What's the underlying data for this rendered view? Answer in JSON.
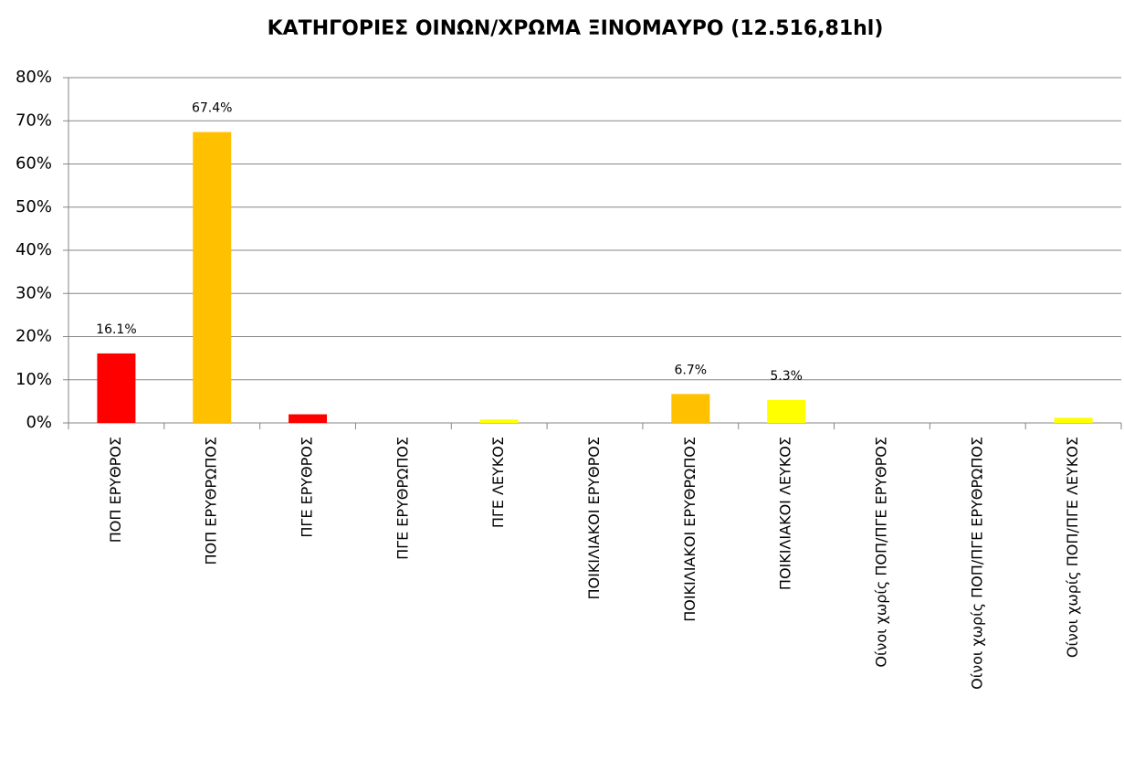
{
  "chart_data": {
    "type": "bar",
    "title": "ΚΑΤΗΓΟΡΙΕΣ ΟΙΝΩΝ/ΧΡΩΜΑ ΞΙΝΟΜΑΥΡΟ (12.516,81hl)",
    "categories": [
      "ΠΟΠ ΕΡΥΘΡΟΣ",
      "ΠΟΠ ΕΡΥΘΡΩΠΟΣ",
      "ΠΓΕ ΕΡΥΘΡΟΣ",
      "ΠΓΕ ΕΡΥΘΡΩΠΟΣ",
      "ΠΓΕ ΛΕΥΚΟΣ",
      "ΠΟΙΚΙΛΙΑΚΟΙ ΕΡΥΘΡΟΣ",
      "ΠΟΙΚΙΛΙΑΚΟΙ ΕΡΥΘΡΩΠΟΣ",
      "ΠΟΙΚΙΛΙΑΚΟΙ ΛΕΥΚΟΣ",
      "Οίνοι χωρίς ΠΟΠ/ΠΓΕ ΕΡΥΘΡΟΣ",
      "Οίνοι χωρίς ΠΟΠ/ΠΓΕ ΕΡΥΘΡΩΠΟΣ",
      "Οίνοι χωρίς ΠΟΠ/ΠΓΕ ΛΕΥΚΟΣ"
    ],
    "values": [
      16.1,
      67.4,
      2.0,
      0,
      0.8,
      0,
      6.7,
      5.3,
      0,
      0,
      1.2
    ],
    "value_labels": [
      "16.1%",
      "67.4%",
      null,
      null,
      null,
      null,
      "6.7%",
      "5.3%",
      null,
      null,
      null
    ],
    "colors": [
      "#ff0000",
      "#ffc000",
      "#ff0000",
      "#ff0000",
      "#ffff00",
      "#ff0000",
      "#ffc000",
      "#ffff00",
      "#ff0000",
      "#ffc000",
      "#ffff00"
    ],
    "ylim": [
      0,
      80
    ],
    "yticks": [
      {
        "value": 0,
        "label": "0%"
      },
      {
        "value": 10,
        "label": "10%"
      },
      {
        "value": 20,
        "label": "20%"
      },
      {
        "value": 30,
        "label": "30%"
      },
      {
        "value": 40,
        "label": "40%"
      },
      {
        "value": 50,
        "label": "50%"
      },
      {
        "value": 60,
        "label": "60%"
      },
      {
        "value": 70,
        "label": "70%"
      },
      {
        "value": 80,
        "label": "80%"
      }
    ],
    "grid": true
  }
}
